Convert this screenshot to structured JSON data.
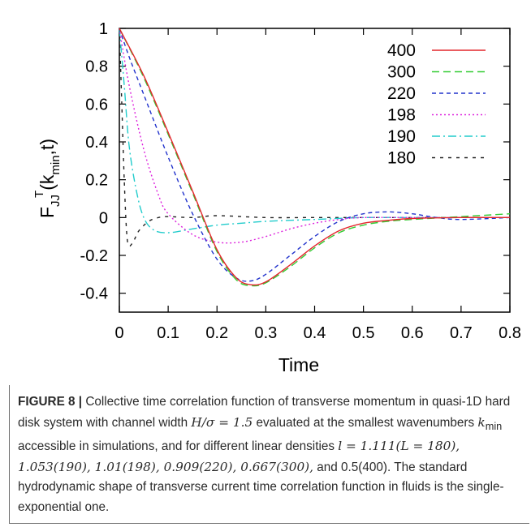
{
  "figure": {
    "caption": {
      "label": "FIGURE 8 |",
      "text_part1": " Collective time correlation function of transverse momentum in quasi-1D hard disk system with channel width ",
      "math_width": "H/σ = 1.5",
      "text_part2": " evaluated at the smallest wavenumbers ",
      "math_k": "k",
      "math_k_sub": "min",
      "text_part3": " accessible in simulations, and for different linear densities ",
      "math_densities": "l = 1.111(L = 180), 1.053(190), 1.01(198), 0.909(220), 0.667(300),",
      "text_part4": " and 0.5(400). The standard hydrodynamic shape of transverse current time correlation function in fluids is the single-exponential one."
    }
  },
  "chart_data": {
    "type": "line",
    "xlabel": "Time",
    "ylabel": "F_JJ^T(k_min,t)",
    "ylabel_parts": {
      "main": "F",
      "sub": "JJ",
      "sup": "T",
      "arg": "(k",
      "arg_sub": "min",
      "arg_end": ",t)"
    },
    "xlim": [
      0,
      0.8
    ],
    "ylim": [
      -0.5,
      1.0
    ],
    "x_ticks": [
      "0",
      "0.1",
      "0.2",
      "0.3",
      "0.4",
      "0.5",
      "0.6",
      "0.7",
      "0.8"
    ],
    "y_ticks": [
      "1",
      "0.8",
      "0.6",
      "0.4",
      "0.2",
      "0",
      "-0.2",
      "-0.4"
    ],
    "legend_position": "top-right",
    "grid": false,
    "series": [
      {
        "name": "400",
        "color": "#e4262c",
        "dash": "",
        "x": [
          0,
          0.05,
          0.1,
          0.15,
          0.2,
          0.24,
          0.27,
          0.3,
          0.35,
          0.4,
          0.45,
          0.5,
          0.55,
          0.6,
          0.7,
          0.8
        ],
        "y": [
          1.0,
          0.75,
          0.45,
          0.14,
          -0.17,
          -0.32,
          -0.355,
          -0.34,
          -0.25,
          -0.15,
          -0.07,
          -0.03,
          -0.015,
          -0.005,
          0.0,
          0.0
        ]
      },
      {
        "name": "300",
        "color": "#33cc33",
        "dash": "9,5",
        "x": [
          0,
          0.05,
          0.1,
          0.15,
          0.2,
          0.24,
          0.27,
          0.3,
          0.35,
          0.4,
          0.45,
          0.5,
          0.55,
          0.6,
          0.7,
          0.8
        ],
        "y": [
          1.0,
          0.74,
          0.44,
          0.13,
          -0.18,
          -0.33,
          -0.36,
          -0.345,
          -0.26,
          -0.16,
          -0.08,
          -0.04,
          -0.02,
          -0.01,
          0.005,
          0.02
        ]
      },
      {
        "name": "220",
        "color": "#2233cc",
        "dash": "5,4",
        "x": [
          0,
          0.02,
          0.05,
          0.1,
          0.15,
          0.2,
          0.24,
          0.27,
          0.3,
          0.35,
          0.4,
          0.45,
          0.5,
          0.55,
          0.6,
          0.65,
          0.7,
          0.8
        ],
        "y": [
          1.0,
          0.85,
          0.65,
          0.32,
          0.02,
          -0.22,
          -0.32,
          -0.335,
          -0.3,
          -0.2,
          -0.1,
          -0.02,
          0.02,
          0.03,
          0.02,
          0.0,
          -0.01,
          0.0
        ]
      },
      {
        "name": "198",
        "color": "#dd22dd",
        "dash": "2,3",
        "x": [
          0,
          0.02,
          0.05,
          0.08,
          0.1,
          0.15,
          0.2,
          0.25,
          0.3,
          0.35,
          0.4,
          0.45,
          0.5,
          0.6,
          0.7,
          0.8
        ],
        "y": [
          1.0,
          0.7,
          0.36,
          0.12,
          0.02,
          -0.09,
          -0.13,
          -0.13,
          -0.1,
          -0.06,
          -0.03,
          -0.01,
          0.0,
          0.0,
          0.0,
          0.0
        ]
      },
      {
        "name": "190",
        "color": "#22cccc",
        "dash": "10,4,2,4",
        "x": [
          0,
          0.01,
          0.02,
          0.035,
          0.05,
          0.07,
          0.1,
          0.15,
          0.2,
          0.25,
          0.3,
          0.4,
          0.5,
          0.6,
          0.7,
          0.8
        ],
        "y": [
          1.0,
          0.7,
          0.38,
          0.14,
          0.0,
          -0.065,
          -0.08,
          -0.06,
          -0.04,
          -0.03,
          -0.02,
          -0.01,
          0.0,
          0.0,
          0.0,
          0.0
        ]
      },
      {
        "name": "180",
        "color": "#222222",
        "dash": "4,6",
        "x": [
          0,
          0.005,
          0.01,
          0.015,
          0.02,
          0.03,
          0.04,
          0.06,
          0.08,
          0.1,
          0.15,
          0.2,
          0.3,
          0.4,
          0.5,
          0.6,
          0.7,
          0.8
        ],
        "y": [
          1.0,
          0.6,
          0.2,
          -0.08,
          -0.15,
          -0.12,
          -0.07,
          -0.02,
          0.0,
          0.005,
          0.0,
          0.01,
          0.0,
          0.0,
          0.0,
          0.0,
          0.0,
          0.0
        ]
      }
    ]
  }
}
